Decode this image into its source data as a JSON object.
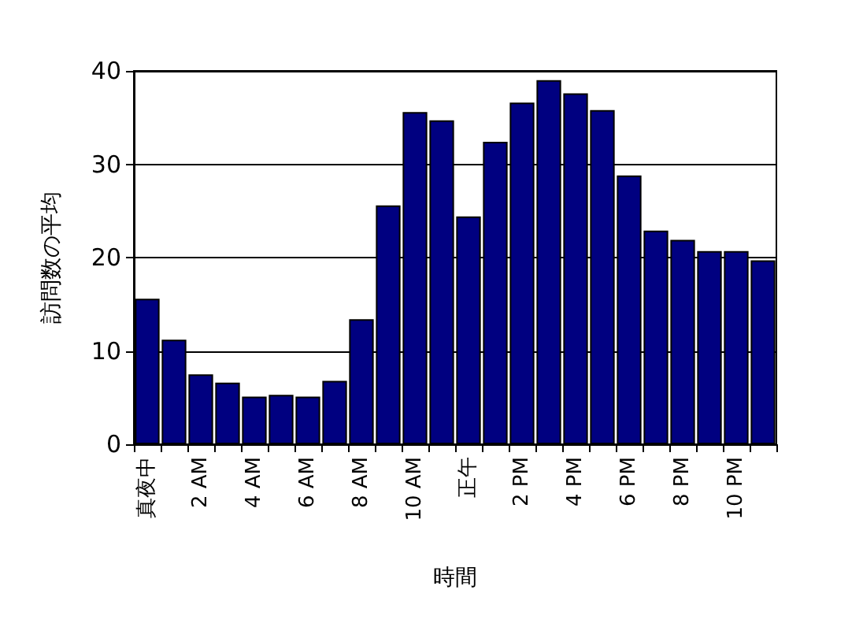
{
  "chart_data": {
    "type": "bar",
    "xlabel": "時間",
    "ylabel": "訪問数の平均",
    "categories": [
      "真夜中",
      null,
      "2 AM",
      null,
      "4 AM",
      null,
      "6 AM",
      null,
      "8 AM",
      null,
      "10 AM",
      null,
      "正午",
      null,
      "2 PM",
      null,
      "4 PM",
      null,
      "6 PM",
      null,
      "8 PM",
      null,
      "10 PM",
      null
    ],
    "values": [
      15.6,
      11.2,
      7.5,
      6.6,
      5.1,
      5.3,
      5.1,
      6.8,
      13.4,
      25.6,
      35.6,
      34.7,
      24.4,
      32.4,
      36.6,
      39.0,
      37.6,
      35.8,
      28.8,
      22.9,
      21.9,
      20.7,
      20.7,
      19.7
    ],
    "color": "#000080",
    "ylim": [
      0,
      40
    ],
    "yticks": [
      0,
      10,
      20,
      30,
      40
    ],
    "grid": "y"
  }
}
